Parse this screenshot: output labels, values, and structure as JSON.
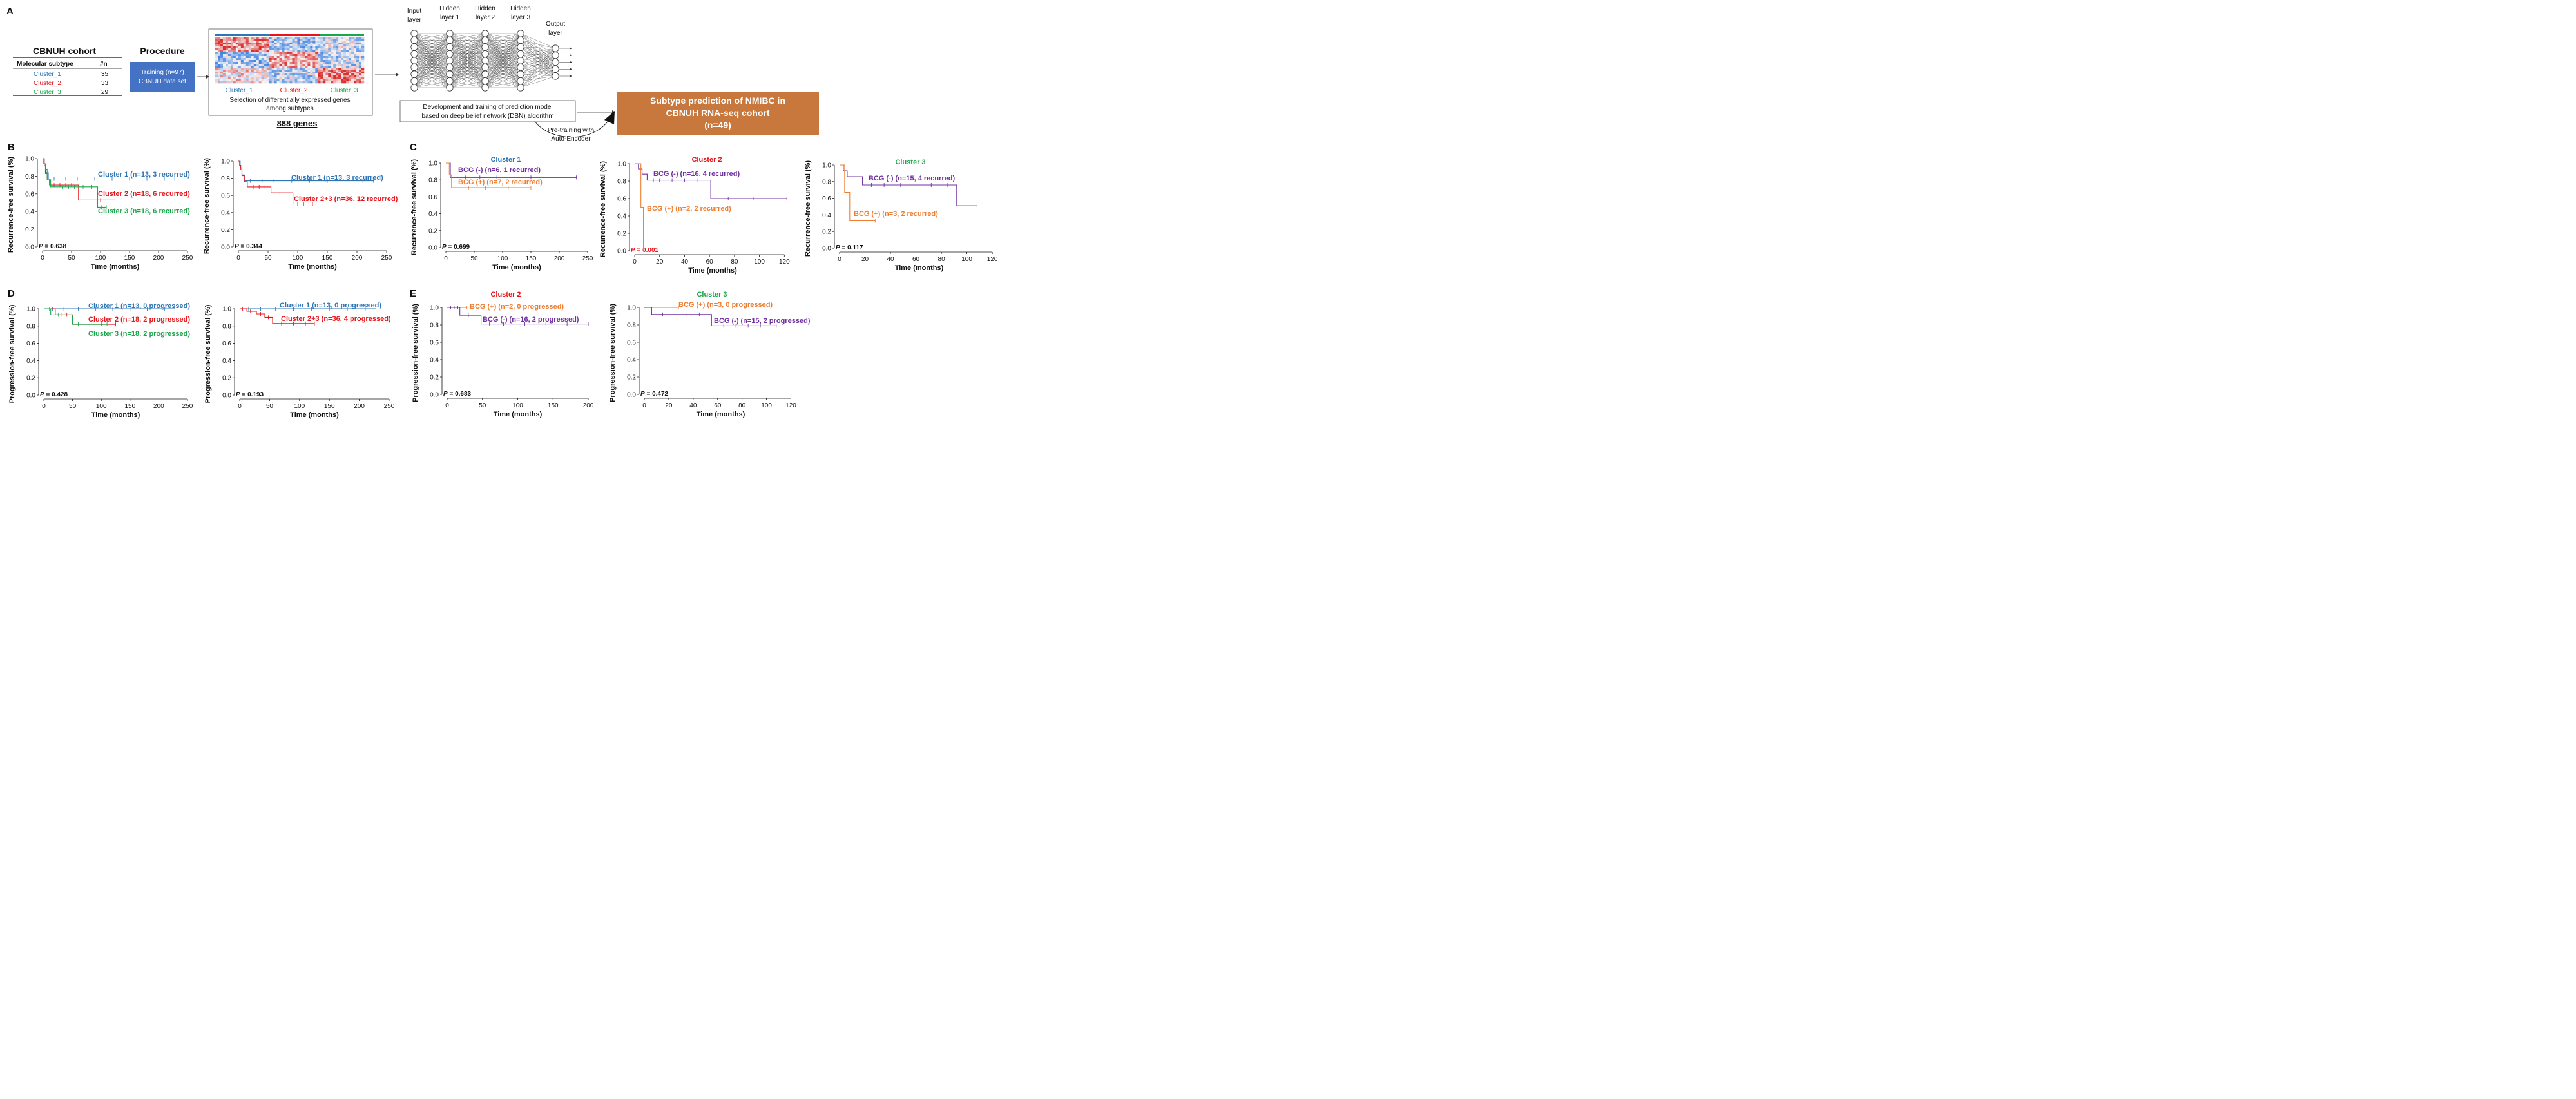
{
  "colors": {
    "c1": "#2e75b6",
    "c2": "#e8141a",
    "c3": "#1aa64a",
    "purple": "#7030a0",
    "orange": "#ed7d31",
    "proc": "#4472c4",
    "result": "#c8783c",
    "black": "#111111"
  },
  "panelA": {
    "label": "A",
    "cohort_title": "CBNUH cohort",
    "table_headers": [
      "Molecular subtype",
      "#n"
    ],
    "table_rows": [
      {
        "name": "Cluster_1",
        "n": "35",
        "color": "#2e75b6"
      },
      {
        "name": "Cluster_2",
        "n": "33",
        "color": "#e8141a"
      },
      {
        "name": "Cluster_3",
        "n": "29",
        "color": "#1aa64a"
      }
    ],
    "procedure_title": "Procedure",
    "procedure_box": [
      "Training (n=97)",
      "CBNUH data set"
    ],
    "heatmap_labels": [
      "Cluster_1",
      "Cluster_2",
      "Cluster_3"
    ],
    "heatmap_caption": [
      "Selection of differentially expressed genes",
      "among subtypes"
    ],
    "genes_label": "888 genes",
    "nn_layers": [
      "Input|layer",
      "Hidden|layer 1",
      "Hidden|layer 2",
      "Hidden|layer 3",
      "Output|layer"
    ],
    "dbn_box": [
      "Development and training of prediction model",
      "based on deep belief network (DBN) algorithm"
    ],
    "pretraining": [
      "Pre-training with",
      "Auto-Encoder"
    ],
    "result_box": [
      "Subtype prediction of NMIBC in",
      "CBNUH RNA-seq cohort",
      "(n=49)"
    ]
  },
  "chart_data": [
    {
      "id": "B1",
      "panel": "B",
      "type": "line",
      "title": "",
      "ylabel": "Recurrence-free survival (%)",
      "xlabel": "Time (months)",
      "xlim": [
        0,
        250
      ],
      "ylim": [
        0,
        1
      ],
      "xticks": [
        0,
        50,
        100,
        150,
        200,
        250
      ],
      "yticks": [
        0.0,
        0.2,
        0.4,
        0.6,
        0.8,
        1.0
      ],
      "pvalue": "0.638",
      "pvalue_color": "#111111",
      "series": [
        {
          "name": "Cluster 1 (n=13, 3 recurred)",
          "color": "#2e75b6",
          "x": [
            0,
            3,
            6,
            10,
            228
          ],
          "y": [
            1.0,
            0.92,
            0.84,
            0.77,
            0.77
          ],
          "censor": [
            20,
            40,
            60,
            90,
            120,
            150,
            180,
            210,
            228
          ]
        },
        {
          "name": "Cluster 2 (n=18, 6 recurred)",
          "color": "#e8141a",
          "x": [
            0,
            3,
            5,
            8,
            12,
            62,
            125
          ],
          "y": [
            1.0,
            0.94,
            0.83,
            0.77,
            0.7,
            0.53,
            0.53
          ],
          "censor": [
            20,
            30,
            40,
            50,
            100,
            125
          ]
        },
        {
          "name": "Cluster 3 (n=18, 6 recurred)",
          "color": "#1aa64a",
          "x": [
            0,
            2,
            5,
            8,
            14,
            95,
            110
          ],
          "y": [
            1.0,
            0.94,
            0.88,
            0.76,
            0.68,
            0.45,
            0.45
          ],
          "censor": [
            25,
            35,
            45,
            55,
            70,
            85,
            102,
            110
          ]
        }
      ]
    },
    {
      "id": "B2",
      "panel": "",
      "type": "line",
      "title": "",
      "ylabel": "Recurrence-free survival (%)",
      "xlabel": "Time (months)",
      "xlim": [
        0,
        250
      ],
      "ylim": [
        0,
        1
      ],
      "xticks": [
        0,
        50,
        100,
        150,
        200,
        250
      ],
      "yticks": [
        0.0,
        0.2,
        0.4,
        0.6,
        0.8,
        1.0
      ],
      "pvalue": "0.344",
      "pvalue_color": "#111111",
      "series": [
        {
          "name": "Cluster 1 (n=13, 3 recurred)",
          "color": "#2e75b6",
          "x": [
            0,
            3,
            6,
            10,
            228
          ],
          "y": [
            1.0,
            0.92,
            0.84,
            0.77,
            0.77
          ],
          "censor": [
            20,
            40,
            60,
            90,
            120,
            150,
            180,
            210,
            228
          ]
        },
        {
          "name": "Cluster 2+3 (n=36, 12 recurred)",
          "color": "#e8141a",
          "x": [
            0,
            2,
            4,
            6,
            10,
            15,
            55,
            92,
            125
          ],
          "y": [
            1.0,
            0.95,
            0.9,
            0.83,
            0.76,
            0.7,
            0.63,
            0.5,
            0.5
          ],
          "censor": [
            25,
            35,
            45,
            70,
            100,
            110,
            125
          ]
        }
      ]
    },
    {
      "id": "C1",
      "panel": "C",
      "type": "line",
      "title": "Cluster 1",
      "title_color": "#2e75b6",
      "ylabel": "Recurrence-free survival (%)",
      "xlabel": "Time (months)",
      "xlim": [
        0,
        250
      ],
      "ylim": [
        0,
        1
      ],
      "xticks": [
        0,
        50,
        100,
        150,
        200,
        250
      ],
      "yticks": [
        0.0,
        0.2,
        0.4,
        0.6,
        0.8,
        1.0
      ],
      "pvalue": "0.699",
      "pvalue_color": "#111111",
      "series": [
        {
          "name": "BCG (-) (n=6, 1 recurred)",
          "color": "#7030a0",
          "x": [
            0,
            8,
            230
          ],
          "y": [
            1.0,
            0.83,
            0.83
          ],
          "censor": [
            20,
            35,
            60,
            90,
            120,
            150,
            230
          ]
        },
        {
          "name": "BCG (+) (n=7, 2 recurred)",
          "color": "#ed7d31",
          "x": [
            0,
            6,
            10,
            150
          ],
          "y": [
            1.0,
            0.86,
            0.71,
            0.71
          ],
          "censor": [
            40,
            70,
            110,
            150
          ]
        }
      ]
    },
    {
      "id": "C2",
      "panel": "",
      "type": "line",
      "title": "Cluster 2",
      "title_color": "#e8141a",
      "ylabel": "Recurrence-free survival (%)",
      "xlabel": "Time (months)",
      "xlim": [
        0,
        125
      ],
      "ylim": [
        0,
        1
      ],
      "xticks": [
        0,
        20,
        40,
        60,
        80,
        100,
        120
      ],
      "yticks": [
        0.0,
        0.2,
        0.4,
        0.6,
        0.8,
        1.0
      ],
      "pvalue": "0.001",
      "pvalue_color": "#e8141a",
      "series": [
        {
          "name": "BCG (-) (n=16, 4 recurred)",
          "color": "#7030a0",
          "x": [
            0,
            3,
            6,
            10,
            61,
            122
          ],
          "y": [
            1.0,
            0.94,
            0.88,
            0.81,
            0.6,
            0.6
          ],
          "censor": [
            15,
            20,
            30,
            40,
            50,
            75,
            95,
            122
          ]
        },
        {
          "name": "BCG (+) (n=2, 2 recurred)",
          "color": "#ed7d31",
          "x": [
            0,
            5,
            7
          ],
          "y": [
            1.0,
            0.5,
            0.0
          ],
          "censor": []
        }
      ]
    },
    {
      "id": "C3",
      "panel": "",
      "type": "line",
      "title": "Cluster 3",
      "title_color": "#1aa64a",
      "ylabel": "Recurrence-free survival (%)",
      "xlabel": "Time (months)",
      "xlim": [
        0,
        125
      ],
      "ylim": [
        0,
        1
      ],
      "xticks": [
        0,
        20,
        40,
        60,
        80,
        100,
        120
      ],
      "yticks": [
        0.0,
        0.2,
        0.4,
        0.6,
        0.8,
        1.0
      ],
      "pvalue": "0.117",
      "pvalue_color": "#111111",
      "series": [
        {
          "name": "BCG (-) (n=15, 4 recurred)",
          "color": "#7030a0",
          "x": [
            0,
            3,
            6,
            18,
            92,
            108
          ],
          "y": [
            1.0,
            0.93,
            0.86,
            0.76,
            0.51,
            0.51
          ],
          "censor": [
            25,
            35,
            48,
            60,
            72,
            85,
            108
          ]
        },
        {
          "name": "BCG (+) (n=3, 2 recurred)",
          "color": "#ed7d31",
          "x": [
            0,
            4,
            8,
            28
          ],
          "y": [
            1.0,
            0.67,
            0.33,
            0.33
          ],
          "censor": [
            28
          ]
        }
      ]
    },
    {
      "id": "D1",
      "panel": "D",
      "type": "line",
      "title": "",
      "ylabel": "Progression-free survival (%)",
      "xlabel": "Time (months)",
      "xlim": [
        0,
        250
      ],
      "ylim": [
        0,
        1
      ],
      "xticks": [
        0,
        50,
        100,
        150,
        200,
        250
      ],
      "yticks": [
        0.0,
        0.2,
        0.4,
        0.6,
        0.8,
        1.0
      ],
      "pvalue": "0.428",
      "pvalue_color": "#111111",
      "series": [
        {
          "name": "Cluster 1 (n=13, 0 progressed)",
          "color": "#2e75b6",
          "x": [
            0,
            228
          ],
          "y": [
            1.0,
            1.0
          ],
          "censor": [
            15,
            35,
            60,
            90,
            120,
            150,
            180,
            210,
            228
          ]
        },
        {
          "name": "Cluster 2 (n=18, 2 progressed)",
          "color": "#e8141a",
          "x": [
            0,
            20,
            50,
            125
          ],
          "y": [
            1.0,
            0.93,
            0.82,
            0.82
          ],
          "censor": [
            10,
            30,
            40,
            70,
            100,
            125
          ]
        },
        {
          "name": "Cluster 3 (n=18, 2 progressed)",
          "color": "#1aa64a",
          "x": [
            0,
            12,
            50,
            110
          ],
          "y": [
            1.0,
            0.93,
            0.82,
            0.82
          ],
          "censor": [
            25,
            60,
            80,
            110
          ]
        }
      ]
    },
    {
      "id": "D2",
      "panel": "",
      "type": "line",
      "title": "",
      "ylabel": "Progression-free survival (%)",
      "xlabel": "Time (months)",
      "xlim": [
        0,
        250
      ],
      "ylim": [
        0,
        1
      ],
      "xticks": [
        0,
        50,
        100,
        150,
        200,
        250
      ],
      "yticks": [
        0.0,
        0.2,
        0.4,
        0.6,
        0.8,
        1.0
      ],
      "pvalue": "0.193",
      "pvalue_color": "#111111",
      "series": [
        {
          "name": "Cluster 1 (n=13, 0 progressed)",
          "color": "#2e75b6",
          "x": [
            0,
            228
          ],
          "y": [
            1.0,
            1.0
          ],
          "censor": [
            15,
            35,
            60,
            90,
            120,
            150,
            180,
            210,
            228
          ]
        },
        {
          "name": "Cluster 2+3 (n=36, 4 progressed)",
          "color": "#e8141a",
          "x": [
            0,
            12,
            28,
            42,
            55,
            125
          ],
          "y": [
            1.0,
            0.97,
            0.94,
            0.9,
            0.83,
            0.83
          ],
          "censor": [
            5,
            18,
            22,
            35,
            48,
            70,
            90,
            110,
            125
          ]
        }
      ]
    },
    {
      "id": "E1",
      "panel": "E",
      "type": "line",
      "title": "Cluster 2",
      "title_color": "#e8141a",
      "ylabel": "Progression-free survival (%)",
      "xlabel": "Time (months)",
      "xlim": [
        0,
        200
      ],
      "ylim": [
        0,
        1
      ],
      "xticks": [
        0,
        50,
        100,
        150,
        200
      ],
      "yticks": [
        0.0,
        0.2,
        0.4,
        0.6,
        0.8,
        1.0
      ],
      "pvalue": "0.683",
      "pvalue_color": "#111111",
      "series": [
        {
          "name": "BCG (+) (n=2, 0 progressed)",
          "color": "#ed7d31",
          "x": [
            0,
            28
          ],
          "y": [
            1.0,
            1.0
          ],
          "censor": [
            28
          ]
        },
        {
          "name": "BCG (-) (n=16, 2 progressed)",
          "color": "#7030a0",
          "x": [
            0,
            18,
            48,
            200
          ],
          "y": [
            1.0,
            0.91,
            0.81,
            0.81
          ],
          "censor": [
            5,
            10,
            15,
            30,
            60,
            80,
            110,
            140,
            170,
            200
          ]
        }
      ]
    },
    {
      "id": "E2",
      "panel": "",
      "type": "line",
      "title": "Cluster 3",
      "title_color": "#1aa64a",
      "ylabel": "Progression-free survival (%)",
      "xlabel": "Time (months)",
      "xlim": [
        0,
        125
      ],
      "ylim": [
        0,
        1
      ],
      "xticks": [
        0,
        20,
        40,
        60,
        80,
        100,
        120
      ],
      "yticks": [
        0.0,
        0.2,
        0.4,
        0.6,
        0.8,
        1.0
      ],
      "pvalue": "0.472",
      "pvalue_color": "#111111",
      "series": [
        {
          "name": "BCG (+) (n=3, 0 progressed)",
          "color": "#ed7d31",
          "x": [
            0,
            28
          ],
          "y": [
            1.0,
            1.0
          ],
          "censor": [
            28
          ]
        },
        {
          "name": "BCG (-) (n=15, 2 progressed)",
          "color": "#7030a0",
          "x": [
            0,
            6,
            55,
            108
          ],
          "y": [
            1.0,
            0.92,
            0.79,
            0.79
          ],
          "censor": [
            15,
            25,
            35,
            45,
            65,
            75,
            85,
            95,
            108
          ]
        }
      ]
    }
  ]
}
